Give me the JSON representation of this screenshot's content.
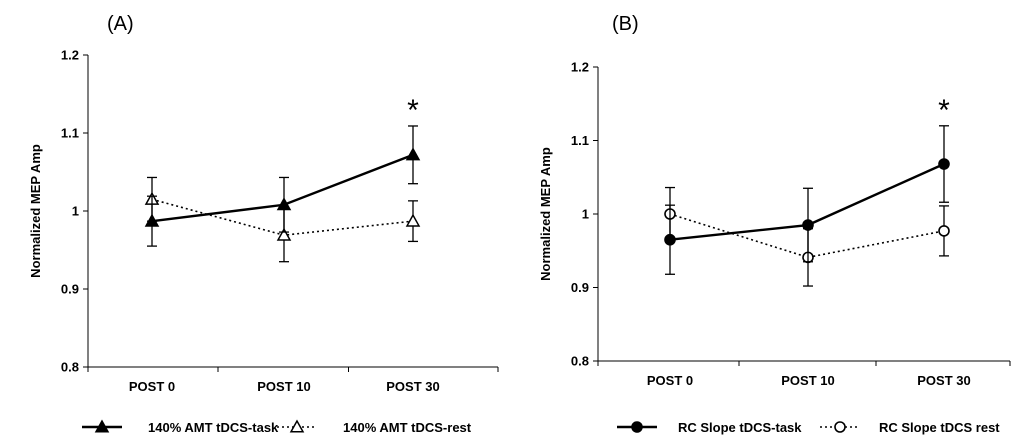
{
  "chart_data": [
    {
      "type": "line",
      "panel_label": "(A)",
      "categories": [
        "POST 0",
        "POST 10",
        "POST 30"
      ],
      "ylabel": "Normalized MEP Amp",
      "ylim": [
        0.8,
        1.2
      ],
      "yticks": [
        "0.8",
        "0.9",
        "1",
        "1.1",
        "1.2"
      ],
      "annotation": "*",
      "annotation_category": "POST 30",
      "series": [
        {
          "name": "140% AMT tDCS-task",
          "marker": "filled-triangle",
          "line": "solid",
          "values": [
            0.987,
            1.008,
            1.072
          ],
          "errors": [
            0.032,
            0.035,
            0.037
          ]
        },
        {
          "name": "140% AMT tDCS-rest",
          "marker": "open-triangle",
          "line": "dotted",
          "values": [
            1.015,
            0.969,
            0.987
          ],
          "errors": [
            0.028,
            0.034,
            0.026
          ]
        }
      ]
    },
    {
      "type": "line",
      "panel_label": "(B)",
      "categories": [
        "POST 0",
        "POST 10",
        "POST 30"
      ],
      "ylabel": "Normalized MEP Amp",
      "ylim": [
        0.8,
        1.2
      ],
      "yticks": [
        "0.8",
        "0.9",
        "1",
        "1.1",
        "1.2"
      ],
      "annotation": "*",
      "annotation_category": "POST 30",
      "series": [
        {
          "name": "RC Slope tDCS-task",
          "marker": "filled-circle",
          "line": "solid",
          "values": [
            0.965,
            0.985,
            1.068
          ],
          "errors": [
            0.047,
            0.05,
            0.052
          ]
        },
        {
          "name": "RC Slope tDCS rest",
          "marker": "open-circle",
          "line": "dotted",
          "values": [
            1.0,
            0.941,
            0.977
          ],
          "errors": [
            0.036,
            0.039,
            0.034
          ]
        }
      ]
    }
  ]
}
